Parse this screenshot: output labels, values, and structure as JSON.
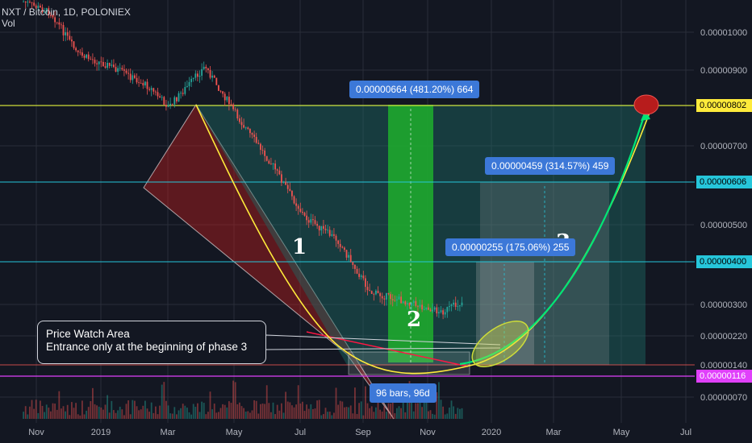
{
  "header": {
    "symbol": "NXT / Bitcoin, 1D, POLONIEX",
    "indicator": "Vol"
  },
  "annotations": {
    "price_watch_title": "Price Watch Area",
    "price_watch_text": "Entrance only at the beginning of phase 3",
    "phase_1": "1",
    "phase_2": "2",
    "phase_3": "3",
    "measure_top": "0.00000664 (481.20%) 664",
    "measure_mid": "0.00000459 (314.57%) 459",
    "measure_low": "0.00000255 (175.06%) 255",
    "bars_range": "96 bars, 96d"
  },
  "price_tags": {
    "t802": "0.00000802",
    "t606": "0.00000606",
    "t400": "0.00000400",
    "t116": "0.00000116"
  },
  "colors": {
    "background": "#131722",
    "up": "#26a69a",
    "down": "#ef5350",
    "level_yellow": "#cddc39",
    "level_cyan": "#26c6da",
    "level_magenta": "#e040fb",
    "measure_box": "#3c78d8",
    "green_zone": "#1fae2d"
  },
  "chart_data": {
    "type": "candlestick",
    "title": "NXT / Bitcoin, 1D, POLONIEX",
    "y_scale": "log",
    "ylim": [
      5.5e-07,
      1.1e-06
    ],
    "y_ticks": [
      "0.00001000",
      "0.00000900",
      "0.00000802",
      "0.00000700",
      "0.00000606",
      "0.00000500",
      "0.00000400",
      "0.00000300",
      "0.00000220",
      "0.00000140",
      "0.00000116",
      "0.00000070"
    ],
    "x_ticks": [
      "Nov",
      "2019",
      "Mar",
      "May",
      "Jul",
      "Sep",
      "Nov",
      "2020",
      "Mar",
      "May",
      "Jul"
    ],
    "horizontal_levels": [
      8.02e-06,
      6.06e-06,
      4e-06,
      1.16e-06
    ],
    "path_points": [
      {
        "date": "2018-10-20",
        "price": 1.25e-05
      },
      {
        "date": "2018-11-15",
        "price": 1.15e-05
      },
      {
        "date": "2018-12-10",
        "price": 8.5e-06
      },
      {
        "date": "2019-01-10",
        "price": 7.8e-06
      },
      {
        "date": "2019-02-15",
        "price": 6.7e-06
      },
      {
        "date": "2019-03-05",
        "price": 5.8e-06
      },
      {
        "date": "2019-04-08",
        "price": 7.8e-06
      },
      {
        "date": "2019-05-10",
        "price": 5.3e-06
      },
      {
        "date": "2019-06-10",
        "price": 3.8e-06
      },
      {
        "date": "2019-07-10",
        "price": 2.6e-06
      },
      {
        "date": "2019-08-10",
        "price": 2.2e-06
      },
      {
        "date": "2019-09-10",
        "price": 1.5e-06
      },
      {
        "date": "2019-10-15",
        "price": 1.4e-06
      },
      {
        "date": "2019-11-15",
        "price": 1.3e-06
      },
      {
        "date": "2019-12-05",
        "price": 1.4e-06
      }
    ],
    "projection": [
      {
        "date": "2019-12-05",
        "price": 1.4e-06
      },
      {
        "date": "2020-02-10",
        "price": 2.5e-06
      },
      {
        "date": "2020-04-15",
        "price": 5.5e-06
      },
      {
        "date": "2020-05-20",
        "price": 8.02e-06
      }
    ]
  }
}
